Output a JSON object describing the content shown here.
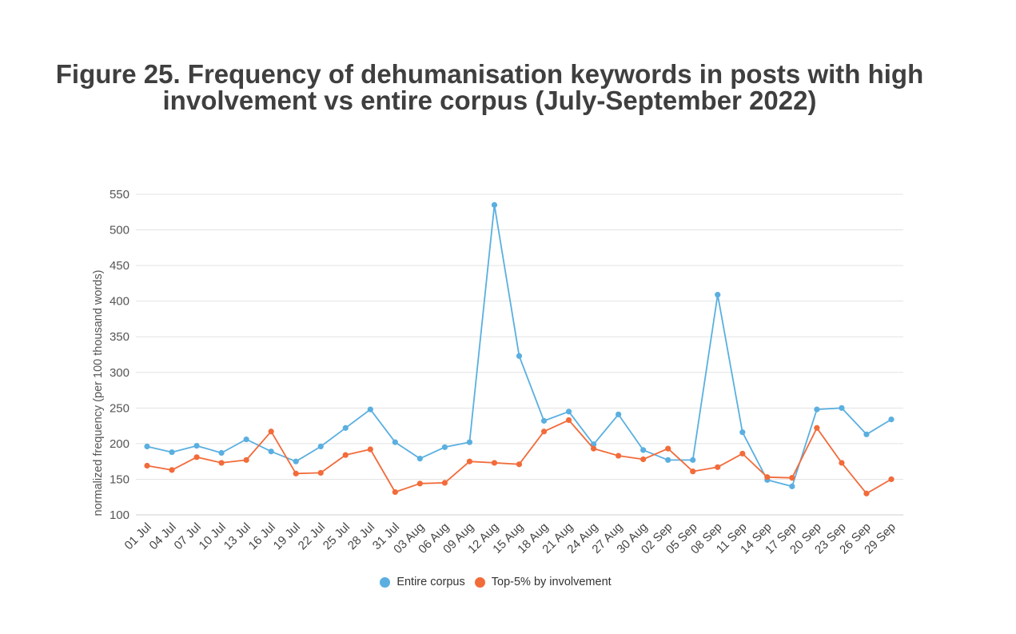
{
  "title_line1": "Figure 25. Frequency of dehumanisation keywords in posts with high",
  "title_line2": "involvement vs entire corpus (July-September 2022)",
  "chart_data": {
    "type": "line",
    "title": "Figure 25. Frequency of dehumanisation keywords in posts with high involvement vs entire corpus (July-September 2022)",
    "xlabel": "",
    "ylabel": "normalized frequency (per 100 thousand words)",
    "ylim": [
      100,
      550
    ],
    "yticks": [
      100,
      150,
      200,
      250,
      300,
      350,
      400,
      450,
      500,
      550
    ],
    "grid": true,
    "legend_position": "bottom",
    "categories": [
      "01 Jul",
      "04 Jul",
      "07 Jul",
      "10 Jul",
      "13 Jul",
      "16 Jul",
      "19 Jul",
      "22 Jul",
      "25 Jul",
      "28 Jul",
      "31 Jul",
      "03 Aug",
      "06 Aug",
      "09 Aug",
      "12 Aug",
      "15 Aug",
      "18 Aug",
      "21 Aug",
      "24 Aug",
      "27 Aug",
      "30 Aug",
      "02 Sep",
      "05 Sep",
      "08 Sep",
      "11 Sep",
      "14 Sep",
      "17 Sep",
      "20 Sep",
      "23 Sep",
      "26 Sep",
      "29 Sep"
    ],
    "series": [
      {
        "name": "Entire corpus",
        "color": "#5aafe0",
        "values": [
          196,
          188,
          197,
          187,
          206,
          189,
          175,
          196,
          222,
          248,
          202,
          179,
          195,
          202,
          535,
          323,
          232,
          245,
          199,
          241,
          191,
          177,
          177,
          409,
          216,
          149,
          140,
          248,
          250,
          213,
          234
        ]
      },
      {
        "name": "Top-5% by involvement",
        "color": "#f26b3a",
        "values": [
          169,
          163,
          181,
          173,
          177,
          217,
          158,
          159,
          184,
          192,
          132,
          144,
          145,
          175,
          173,
          171,
          217,
          233,
          193,
          183,
          178,
          193,
          161,
          167,
          186,
          153,
          152,
          222,
          173,
          130,
          150
        ]
      }
    ]
  }
}
